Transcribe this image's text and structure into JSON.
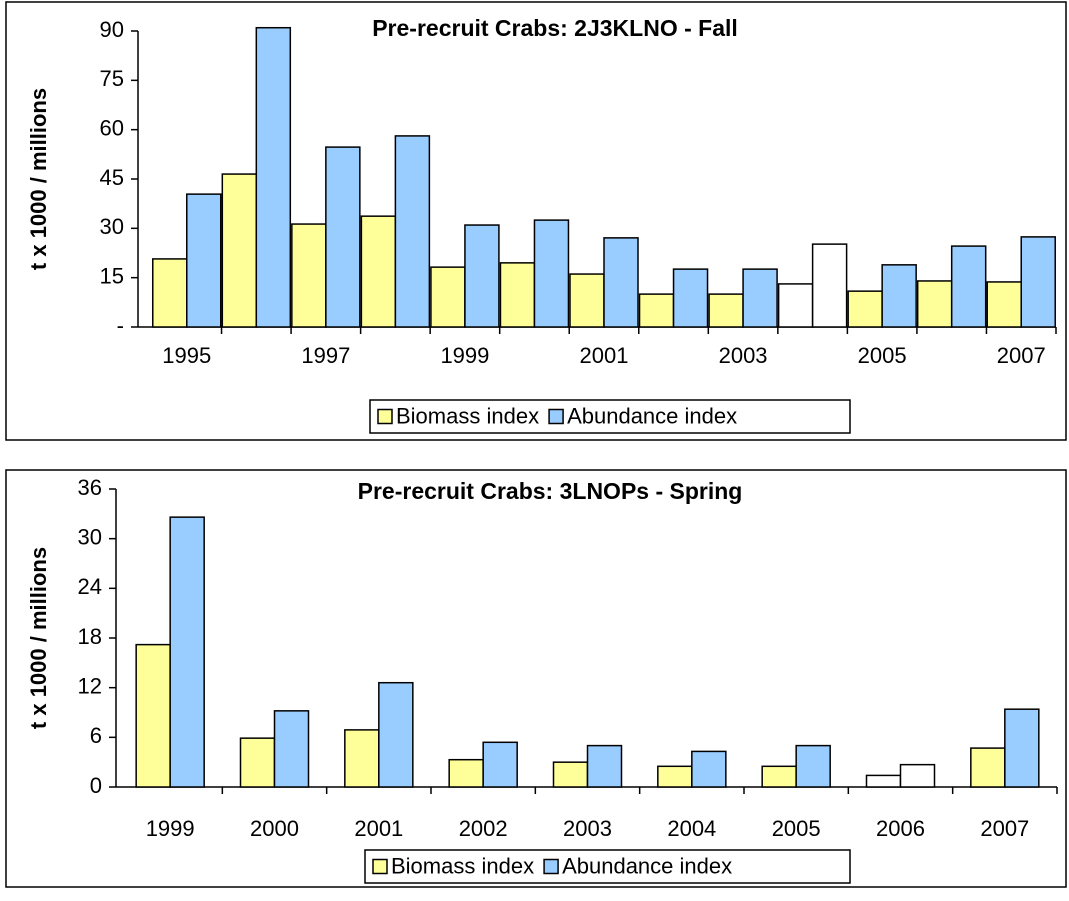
{
  "chart_data": [
    {
      "type": "bar",
      "title": "Pre-recruit Crabs:  2J3KLNO - Fall",
      "y_label": "t x 1000 / millions",
      "categories": [
        "1995",
        null,
        "1997",
        null,
        "1999",
        null,
        "2001",
        null,
        "2003",
        null,
        "2005",
        null,
        "2007"
      ],
      "series": [
        {
          "name": "Biomass index",
          "color": "#ffff99",
          "colors": [
            "#ffff99",
            "#ffff99",
            "#ffff99",
            "#ffff99",
            "#ffff99",
            "#ffff99",
            "#ffff99",
            "#ffff99",
            "#ffff99",
            "#ffffff",
            "#ffff99",
            "#ffff99",
            "#ffff99"
          ],
          "values": [
            20.7,
            46.5,
            31.3,
            33.7,
            18.2,
            19.5,
            16.1,
            10.0,
            10.0,
            13.1,
            10.9,
            14.0,
            13.7
          ]
        },
        {
          "name": "Abundance index",
          "color": "#99ccff",
          "colors": [
            "#99ccff",
            "#99ccff",
            "#99ccff",
            "#99ccff",
            "#99ccff",
            "#99ccff",
            "#99ccff",
            "#99ccff",
            "#99ccff",
            "#ffffff",
            "#99ccff",
            "#99ccff",
            "#99ccff"
          ],
          "values": [
            40.4,
            91,
            54.7,
            58.1,
            31.0,
            32.5,
            27.1,
            17.6,
            17.6,
            25.2,
            18.9,
            24.6,
            27.4
          ]
        }
      ],
      "ylim": [
        0,
        90
      ],
      "yticks": [
        {
          "value": 0,
          "label": "-"
        },
        15,
        30,
        45,
        60,
        75,
        90
      ],
      "legend": "bottom"
    },
    {
      "type": "bar",
      "title": "Pre-recruit Crabs:  3LNOPs - Spring",
      "y_label": "t x 1000 / millions",
      "categories": [
        "1999",
        "2000",
        "2001",
        "2002",
        "2003",
        "2004",
        "2005",
        "2006",
        "2007"
      ],
      "series": [
        {
          "name": "Biomass index",
          "color": "#ffff99",
          "colors": [
            "#ffff99",
            "#ffff99",
            "#ffff99",
            "#ffff99",
            "#ffff99",
            "#ffff99",
            "#ffff99",
            "#ffffff",
            "#ffff99"
          ],
          "values": [
            17.2,
            5.9,
            6.9,
            3.3,
            3.0,
            2.5,
            2.5,
            1.4,
            4.7
          ]
        },
        {
          "name": "Abundance index",
          "color": "#99ccff",
          "colors": [
            "#99ccff",
            "#99ccff",
            "#99ccff",
            "#99ccff",
            "#99ccff",
            "#99ccff",
            "#99ccff",
            "#ffffff",
            "#99ccff"
          ],
          "values": [
            32.6,
            9.2,
            12.6,
            5.4,
            5.0,
            4.3,
            5.0,
            2.7,
            9.4
          ]
        }
      ],
      "ylim": [
        0,
        36
      ],
      "yticks": [
        0,
        6,
        12,
        18,
        24,
        30,
        36
      ],
      "legend": "bottom"
    }
  ]
}
